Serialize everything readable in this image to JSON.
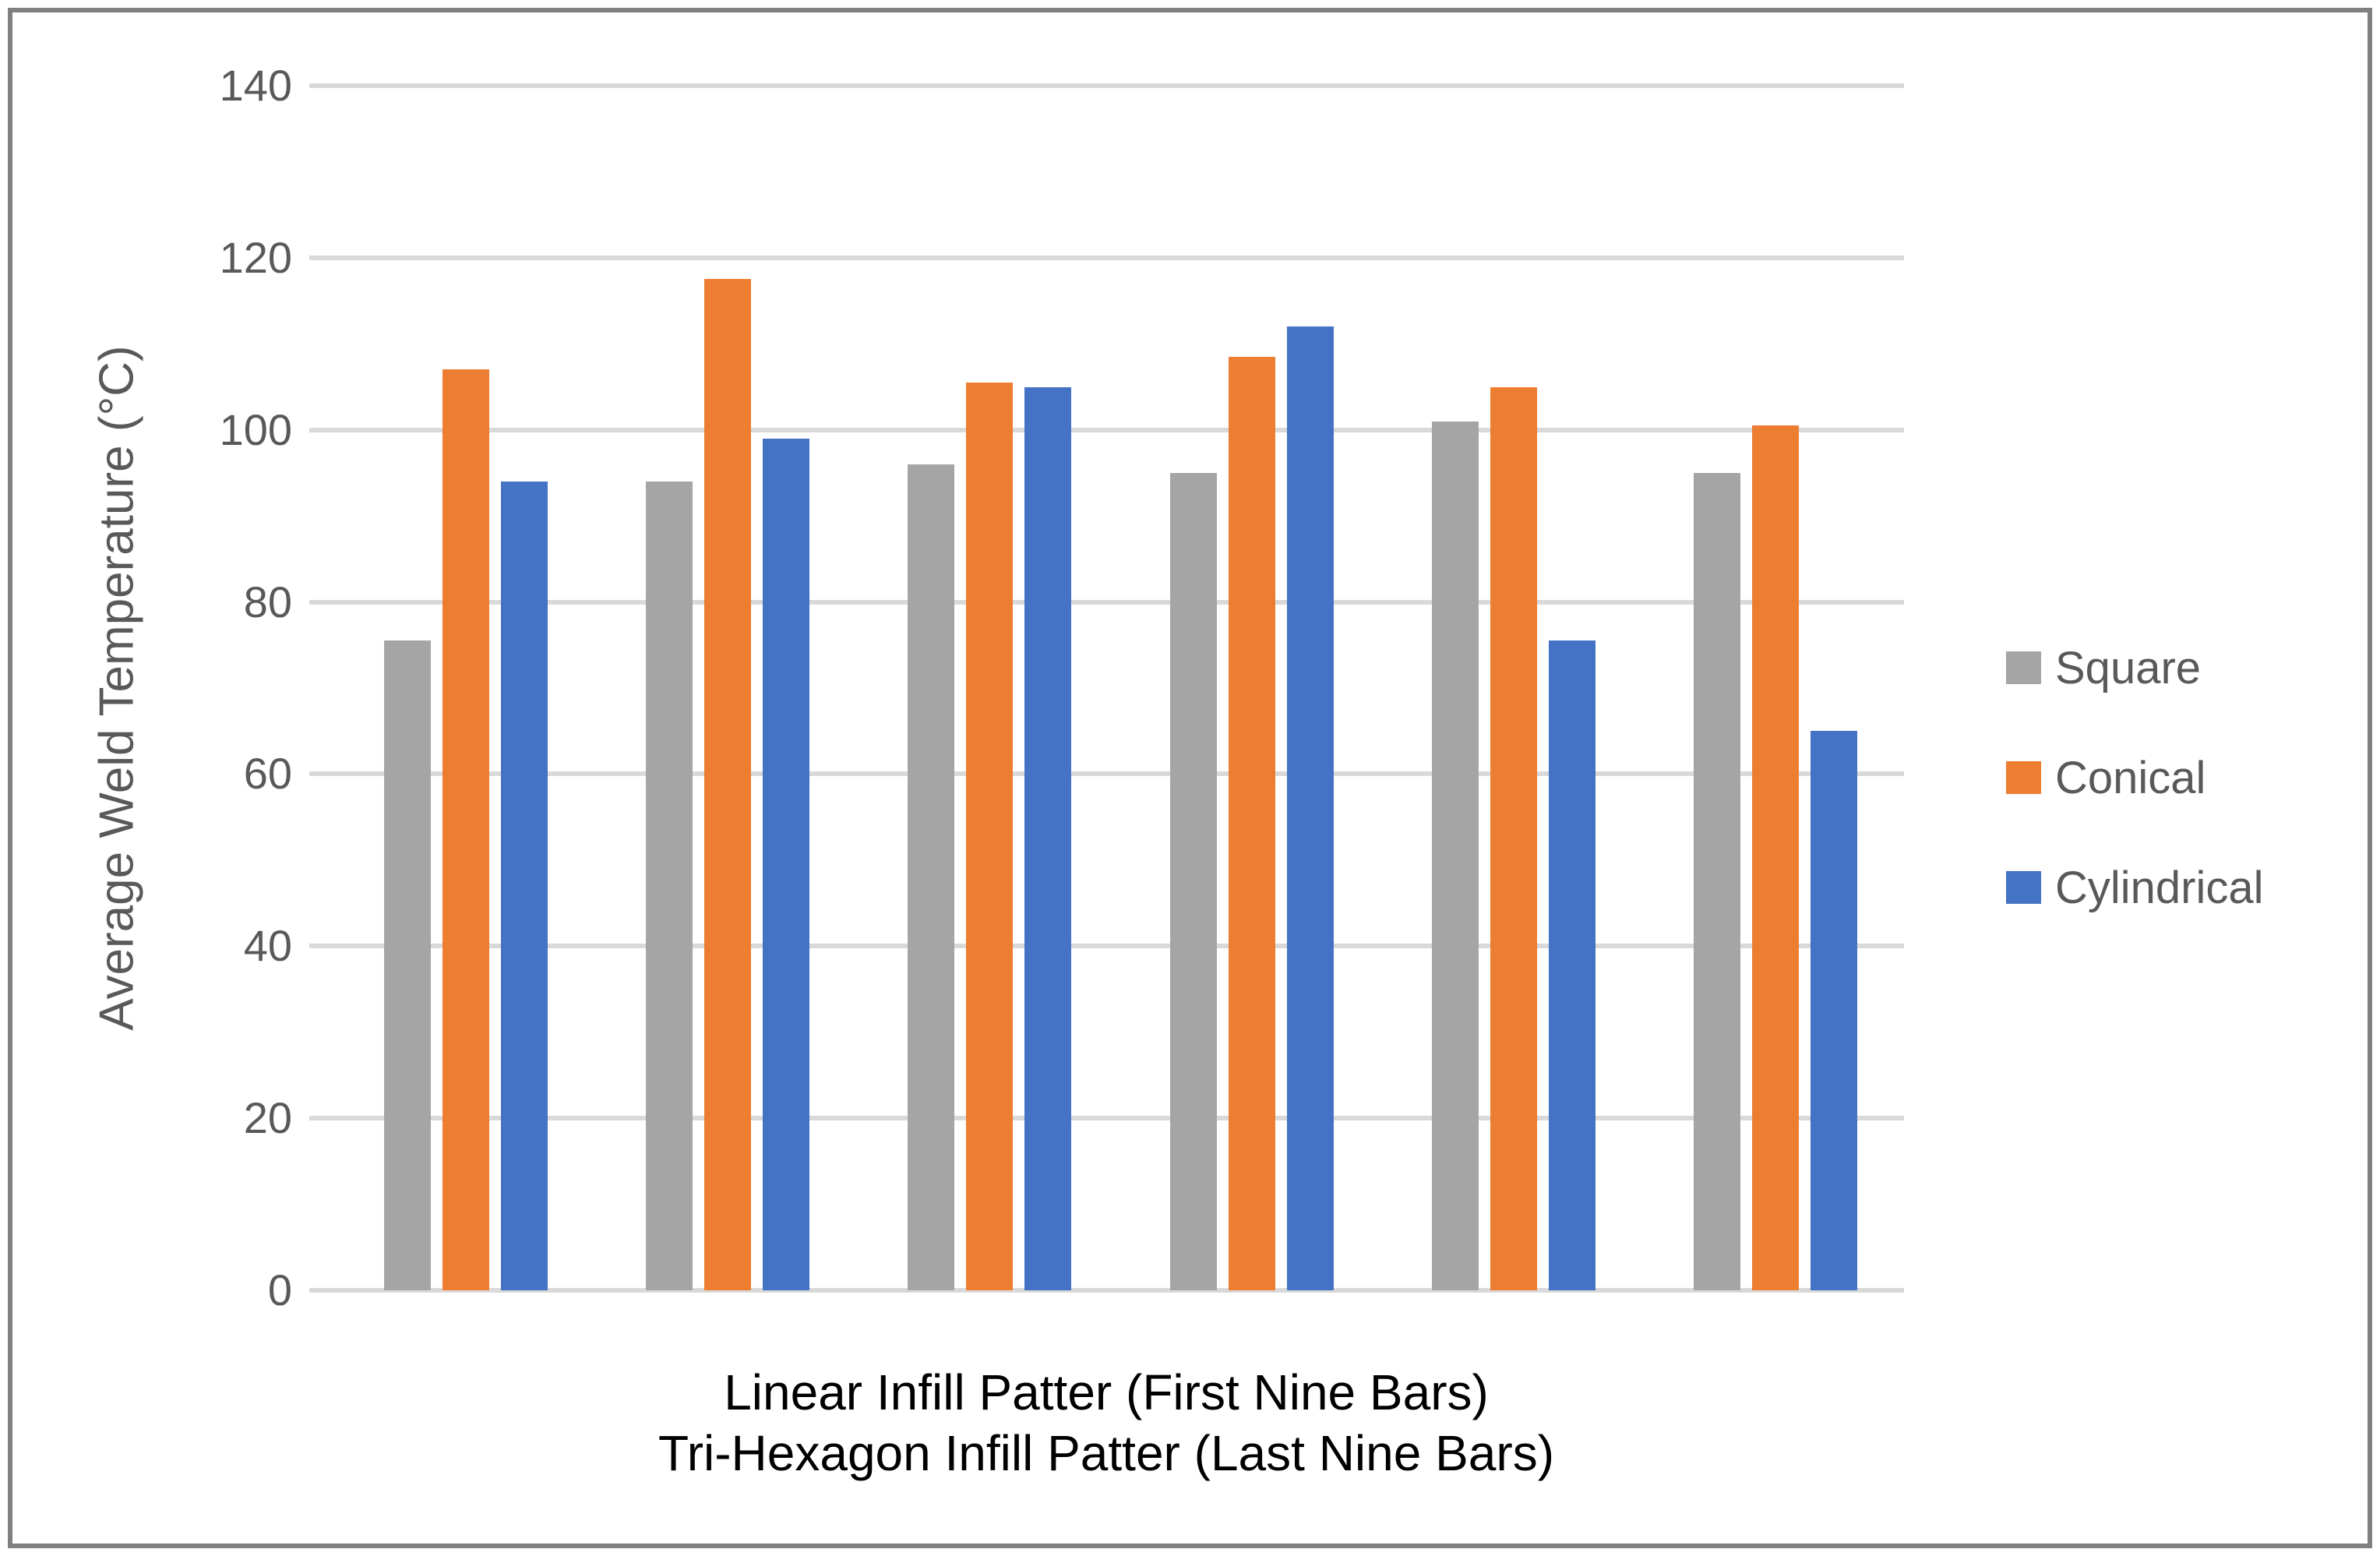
{
  "chart_data": {
    "type": "bar",
    "title": "",
    "ylabel": "Average Weld Temperature (°C)",
    "xlabel_lines": [
      "Linear Infill Patter (First Nine Bars)",
      "Tri-Hexagon Infill Patter (Last Nine Bars)"
    ],
    "n_groups": 6,
    "series": [
      {
        "name": "Square",
        "color": "#A5A5A5",
        "values": [
          75.5,
          94,
          96,
          95,
          101,
          95
        ]
      },
      {
        "name": "Conical",
        "color": "#ED7D31",
        "values": [
          107,
          117.5,
          105.5,
          108.5,
          105,
          100.5
        ]
      },
      {
        "name": "Cylindrical",
        "color": "#4472C4",
        "values": [
          94,
          99,
          105,
          112,
          75.5,
          65
        ]
      }
    ],
    "ylim": [
      0,
      140
    ],
    "ytick_step": 20,
    "yticks": [
      0,
      20,
      40,
      60,
      80,
      100,
      120,
      140
    ],
    "grid": "horizontal",
    "legend_position": "right",
    "gridline_color": "#D9D9D9",
    "axis_text_color": "#595959",
    "xlabel_color": "#000000",
    "border_color": "#808080",
    "background_color": "#FFFFFF"
  }
}
